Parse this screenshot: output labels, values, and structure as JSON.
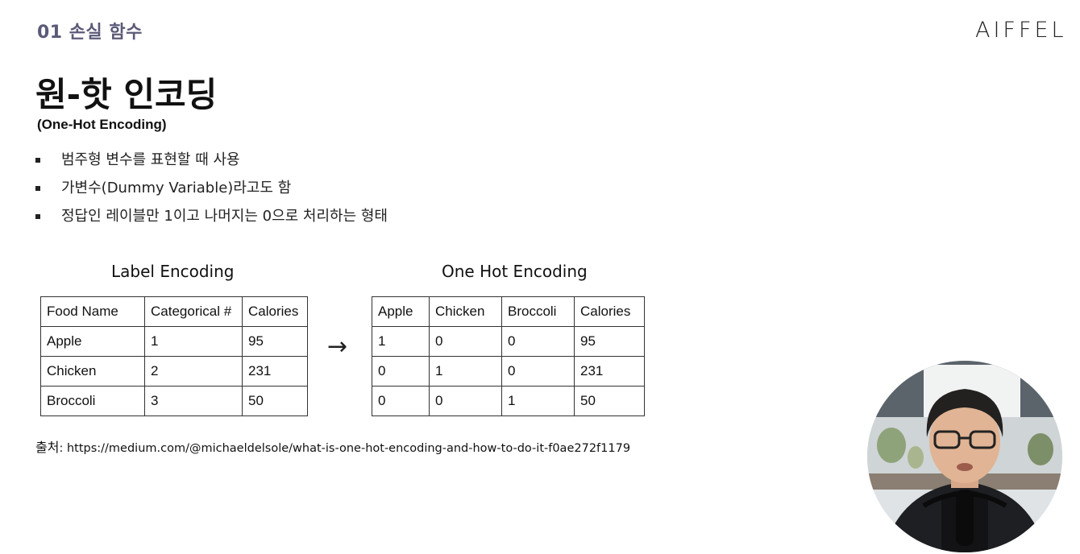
{
  "header": {
    "section_label": "01 손실 함수",
    "brand": "AIFFEL"
  },
  "slide": {
    "title": "원-핫 인코딩",
    "subtitle": "(One-Hot Encoding)",
    "bullets": [
      "범주형 변수를 표현할 때 사용",
      "가변수(Dummy Variable)라고도 함",
      "정답인 레이블만 1이고 나머지는 0으로 처리하는 형태"
    ]
  },
  "label_encoding": {
    "title": "Label Encoding",
    "headers": [
      "Food Name",
      "Categorical #",
      "Calories"
    ],
    "rows": [
      [
        "Apple",
        "1",
        "95"
      ],
      [
        "Chicken",
        "2",
        "231"
      ],
      [
        "Broccoli",
        "3",
        "50"
      ]
    ]
  },
  "arrow": "→",
  "one_hot_encoding": {
    "title": "One Hot Encoding",
    "headers": [
      "Apple",
      "Chicken",
      "Broccoli",
      "Calories"
    ],
    "rows": [
      [
        "1",
        "0",
        "0",
        "95"
      ],
      [
        "0",
        "1",
        "0",
        "231"
      ],
      [
        "0",
        "0",
        "1",
        "50"
      ]
    ]
  },
  "source": {
    "label": "출처",
    "url": ": https://medium.com/@michaeldelsole/what-is-one-hot-encoding-and-how-to-do-it-f0ae272f1179"
  }
}
